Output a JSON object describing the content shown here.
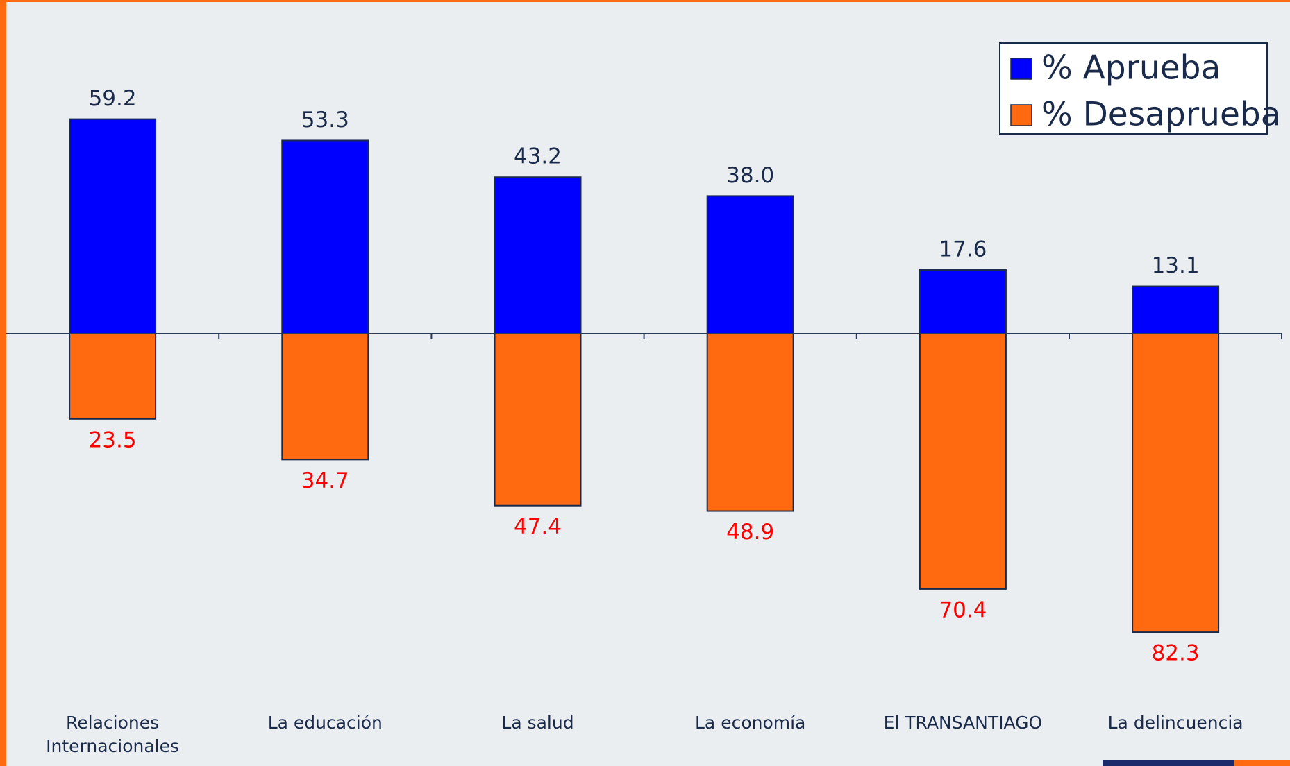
{
  "chart_data": {
    "type": "bar",
    "categories": [
      "Relaciones Internacionales",
      "La educación",
      "La salud",
      "La economía",
      "El TRANSANTIAGO",
      "La delincuencia"
    ],
    "series": [
      {
        "name": "% Aprueba",
        "color": "#0000ff",
        "values": [
          59.2,
          53.3,
          43.2,
          38.0,
          17.6,
          13.1
        ],
        "value_labels": [
          "59.2",
          "53.3",
          "43.2",
          "38.0",
          "17.6",
          "13.1"
        ]
      },
      {
        "name": "% Desaprueba",
        "color": "#ff6a10",
        "values": [
          23.5,
          34.7,
          47.4,
          48.9,
          70.4,
          82.3
        ]
      }
    ],
    "legend": "upper right"
  }
}
